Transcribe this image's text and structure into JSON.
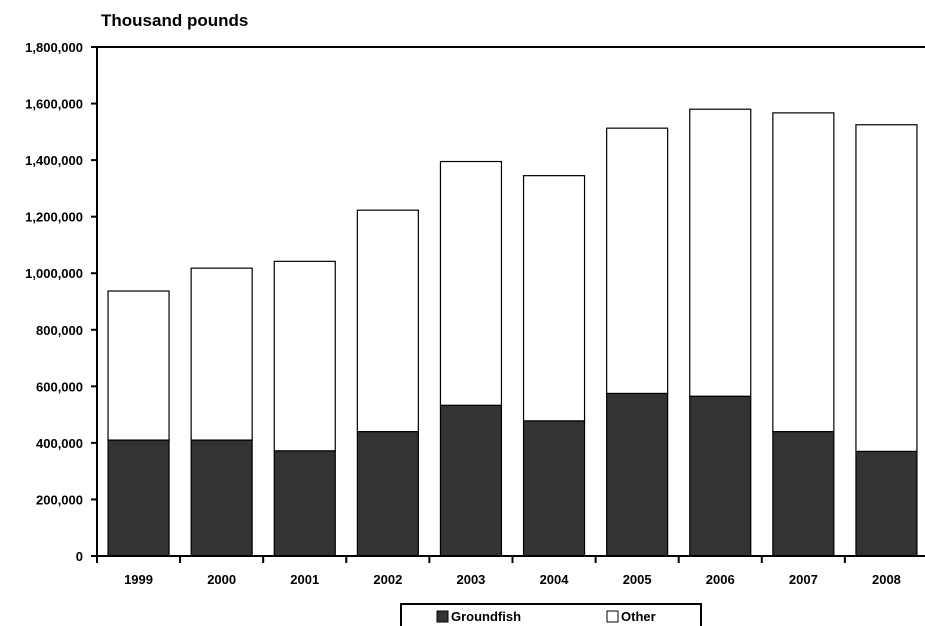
{
  "chart_data": {
    "type": "bar",
    "stacked": true,
    "title": "Thousand pounds",
    "categories": [
      "1999",
      "2000",
      "2001",
      "2002",
      "2003",
      "2004",
      "2005",
      "2006",
      "2007",
      "2008"
    ],
    "series": [
      {
        "name": "Groundfish",
        "color": "#333333",
        "values": [
          410000,
          410000,
          372000,
          440000,
          533000,
          478000,
          575000,
          565000,
          440000,
          370000
        ]
      },
      {
        "name": "Other",
        "color": "#ffffff",
        "values": [
          527000,
          608000,
          670000,
          783000,
          862000,
          867000,
          938000,
          1015000,
          1127000,
          1155000
        ]
      }
    ],
    "ylim": [
      0,
      1800000
    ],
    "yticks": [
      0,
      200000,
      400000,
      600000,
      800000,
      1000000,
      1200000,
      1400000,
      1600000,
      1800000
    ],
    "ytick_labels": [
      "0",
      "200,000",
      "400,000",
      "600,000",
      "800,000",
      "1,000,000",
      "1,200,000",
      "1,400,000",
      "1,600,000",
      "1,800,000"
    ],
    "grid": false,
    "legend_position": "bottom-center"
  }
}
